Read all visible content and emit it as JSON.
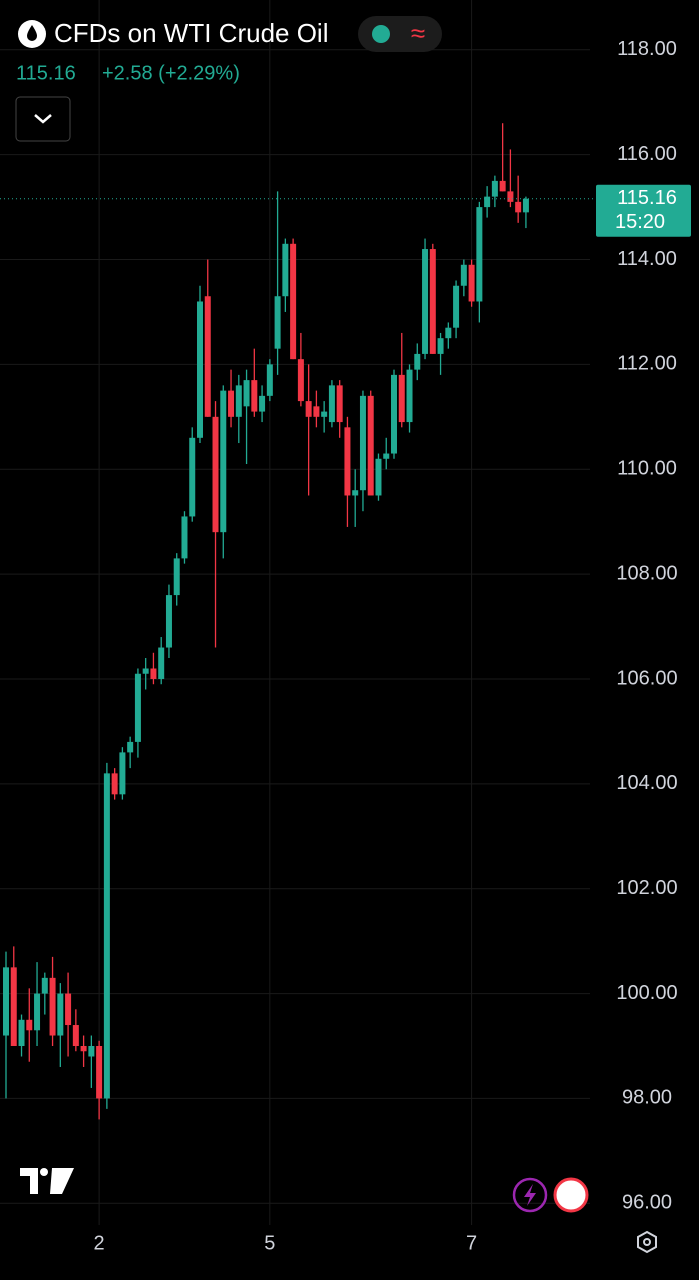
{
  "header": {
    "title": "CFDs on WTI Crude Oil",
    "price": "115.16",
    "change": "+2.58 (+2.29%)"
  },
  "chart_data": {
    "type": "candlestick",
    "categories": [
      null,
      null,
      null,
      null,
      null,
      null,
      null,
      null,
      null,
      null,
      null,
      null,
      "2",
      null,
      null,
      null,
      null,
      null,
      null,
      null,
      null,
      null,
      null,
      null,
      null,
      null,
      null,
      null,
      null,
      null,
      null,
      null,
      null,
      null,
      "5",
      null,
      null,
      null,
      null,
      null,
      null,
      null,
      null,
      null,
      null,
      null,
      null,
      null,
      null,
      null,
      null,
      null,
      null,
      null,
      null,
      null,
      null,
      null,
      null,
      null,
      "7",
      null,
      null,
      null,
      null,
      null,
      null,
      null
    ],
    "open": [
      99.2,
      100.5,
      99.0,
      99.5,
      99.3,
      100.0,
      100.3,
      99.2,
      100.0,
      99.4,
      99.0,
      98.8,
      99.0,
      98.0,
      104.2,
      103.8,
      104.6,
      104.8,
      106.1,
      106.2,
      106.0,
      106.6,
      107.6,
      108.3,
      109.1,
      110.6,
      113.3,
      111.0,
      108.8,
      111.5,
      111.0,
      111.2,
      111.7,
      111.1,
      111.4,
      112.3,
      113.3,
      114.3,
      112.1,
      111.3,
      111.2,
      111.0,
      110.9,
      111.6,
      110.8,
      109.5,
      109.6,
      111.4,
      109.5,
      110.2,
      110.3,
      111.8,
      110.9,
      111.9,
      112.2,
      114.2,
      112.2,
      112.5,
      112.7,
      113.5,
      113.9,
      113.2,
      115.0,
      115.2,
      115.5,
      115.3,
      115.1,
      114.9
    ],
    "high": [
      100.8,
      100.9,
      99.6,
      100.1,
      100.6,
      100.4,
      100.7,
      100.2,
      100.4,
      99.7,
      99.2,
      99.2,
      99.1,
      104.4,
      104.3,
      104.7,
      104.9,
      106.2,
      106.4,
      106.5,
      106.8,
      107.8,
      108.4,
      109.2,
      110.8,
      113.5,
      114.0,
      111.3,
      111.6,
      111.9,
      111.8,
      111.9,
      112.3,
      111.6,
      112.1,
      115.3,
      114.4,
      114.4,
      112.6,
      112.0,
      111.5,
      111.3,
      111.7,
      111.7,
      111.0,
      110.0,
      111.5,
      111.5,
      110.3,
      110.6,
      111.9,
      112.6,
      112.0,
      112.4,
      114.4,
      114.3,
      112.6,
      112.8,
      113.6,
      114.0,
      114.0,
      115.1,
      115.4,
      115.6,
      116.6,
      116.1,
      115.6,
      115.2
    ],
    "low": [
      98.0,
      99.0,
      98.8,
      98.7,
      99.0,
      99.6,
      99.0,
      98.6,
      98.8,
      98.9,
      98.6,
      98.2,
      97.6,
      97.8,
      103.7,
      103.7,
      104.3,
      104.5,
      105.8,
      105.9,
      105.9,
      106.4,
      107.4,
      108.2,
      109.0,
      110.5,
      111.0,
      106.6,
      108.3,
      110.8,
      110.5,
      110.1,
      111.0,
      110.9,
      111.3,
      111.8,
      113.0,
      112.1,
      111.2,
      109.5,
      110.8,
      110.7,
      110.8,
      110.6,
      108.9,
      108.9,
      109.2,
      109.5,
      109.4,
      110.0,
      110.2,
      110.8,
      110.7,
      111.7,
      112.1,
      112.2,
      111.8,
      112.3,
      112.5,
      113.3,
      113.1,
      112.8,
      114.8,
      115.0,
      115.3,
      115.0,
      114.7,
      114.6
    ],
    "close": [
      100.5,
      99.0,
      99.5,
      99.3,
      100.0,
      100.3,
      99.2,
      100.0,
      99.4,
      99.0,
      98.9,
      99.0,
      98.0,
      104.2,
      103.8,
      104.6,
      104.8,
      106.1,
      106.2,
      106.0,
      106.6,
      107.6,
      108.3,
      109.1,
      110.6,
      113.2,
      111.0,
      108.8,
      111.5,
      111.0,
      111.6,
      111.7,
      111.1,
      111.4,
      112.0,
      113.3,
      114.3,
      112.1,
      111.3,
      111.0,
      111.0,
      111.1,
      111.6,
      110.9,
      109.5,
      109.6,
      111.4,
      109.5,
      110.2,
      110.3,
      111.8,
      110.9,
      111.9,
      112.2,
      114.2,
      112.2,
      112.5,
      112.7,
      113.5,
      113.9,
      113.2,
      115.0,
      115.2,
      115.5,
      115.3,
      115.1,
      114.9,
      115.16
    ],
    "up_color": "#22ab94",
    "down_color": "#f23645",
    "last_price": 115.16,
    "countdown": "15:20",
    "ylim": [
      95.3,
      118.95
    ],
    "yticks": [
      {
        "value": 96,
        "label": "96.00"
      },
      {
        "value": 98,
        "label": "98.00"
      },
      {
        "value": 100,
        "label": "100.00"
      },
      {
        "value": 102,
        "label": "102.00"
      },
      {
        "value": 104,
        "label": "104.00"
      },
      {
        "value": 106,
        "label": "106.00"
      },
      {
        "value": 108,
        "label": "108.00"
      },
      {
        "value": 110,
        "label": "110.00"
      },
      {
        "value": 112,
        "label": "112.00"
      },
      {
        "value": 114,
        "label": "114.00"
      },
      {
        "value": 116,
        "label": "116.00"
      },
      {
        "value": 118,
        "label": "118.00"
      }
    ],
    "grid": true
  }
}
